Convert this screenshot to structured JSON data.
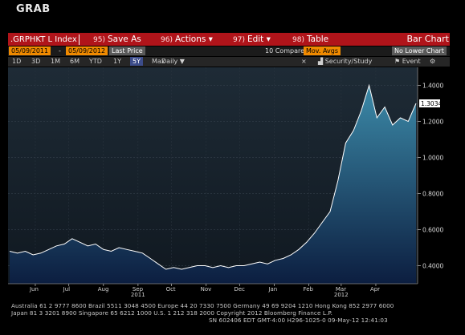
{
  "title": "GRAB",
  "toolbar": {
    "ticker": ".GRPHKT L Index",
    "save_as": "Save As",
    "save_as_num": "95)",
    "actions": "Actions",
    "actions_num": "96)",
    "edit": "Edit",
    "edit_num": "97)",
    "table": "Table",
    "table_num": "98)",
    "bar_chart": "Bar Chart"
  },
  "options": {
    "start_date": "05/09/2011",
    "end_date": "05/09/2012",
    "price_field": "Last Price",
    "compare": "10 Compare",
    "mov_avgs": "Mov. Avgs",
    "lower_chart": "No Lower Chart"
  },
  "periods": [
    "1D",
    "3D",
    "1M",
    "6M",
    "YTD",
    "1Y",
    "5Y",
    "Max"
  ],
  "selected_period": "5Y",
  "frequency": "Daily",
  "tools": {
    "security_study": "Security/Study",
    "event": "Event"
  },
  "chart_data": {
    "type": "area",
    "x": [
      "2011-05-09",
      "2011-05-16",
      "2011-05-23",
      "2011-05-30",
      "2011-06-06",
      "2011-06-13",
      "2011-06-20",
      "2011-06-27",
      "2011-07-04",
      "2011-07-11",
      "2011-07-18",
      "2011-07-25",
      "2011-08-01",
      "2011-08-08",
      "2011-08-15",
      "2011-08-22",
      "2011-08-29",
      "2011-09-05",
      "2011-09-12",
      "2011-09-19",
      "2011-09-26",
      "2011-10-03",
      "2011-10-10",
      "2011-10-17",
      "2011-10-24",
      "2011-10-31",
      "2011-11-07",
      "2011-11-14",
      "2011-11-21",
      "2011-11-28",
      "2011-12-05",
      "2011-12-12",
      "2011-12-19",
      "2011-12-26",
      "2012-01-02",
      "2012-01-09",
      "2012-01-16",
      "2012-01-23",
      "2012-01-30",
      "2012-02-06",
      "2012-02-13",
      "2012-02-20",
      "2012-02-27",
      "2012-03-05",
      "2012-03-12",
      "2012-03-19",
      "2012-03-26",
      "2012-04-02",
      "2012-04-09",
      "2012-04-16",
      "2012-04-23",
      "2012-04-30",
      "2012-05-07"
    ],
    "values": [
      0.48,
      0.47,
      0.48,
      0.46,
      0.47,
      0.49,
      0.51,
      0.52,
      0.55,
      0.53,
      0.51,
      0.52,
      0.49,
      0.48,
      0.5,
      0.49,
      0.48,
      0.47,
      0.44,
      0.41,
      0.38,
      0.39,
      0.38,
      0.39,
      0.4,
      0.4,
      0.39,
      0.4,
      0.39,
      0.4,
      0.4,
      0.41,
      0.42,
      0.41,
      0.43,
      0.44,
      0.46,
      0.49,
      0.53,
      0.58,
      0.64,
      0.7,
      0.87,
      1.08,
      1.15,
      1.26,
      1.4,
      1.22,
      1.28,
      1.18,
      1.22,
      1.2,
      1.3
    ],
    "ylim": [
      0.3,
      1.5
    ],
    "y_ticks": [
      "1.4000",
      "1.2000",
      "1.0000",
      "0.8000",
      "0.6000",
      "0.4000"
    ],
    "y_tick_values": [
      1.4,
      1.2,
      1.0,
      0.8,
      0.6,
      0.4
    ],
    "last_value_label": "1.3034",
    "last_value": 1.3,
    "x_tick_labels": [
      "Jun",
      "Jul",
      "Aug",
      "Sep",
      "Oct",
      "Nov",
      "Dec",
      "Jan",
      "Feb",
      "Mar",
      "Apr"
    ],
    "x_tick_dates": [
      "2011-06-01",
      "2011-07-01",
      "2011-08-01",
      "2011-09-01",
      "2011-10-01",
      "2011-11-01",
      "2011-12-01",
      "2012-01-01",
      "2012-02-01",
      "2012-03-01",
      "2012-04-01"
    ],
    "year_labels": [
      "2011",
      "2012"
    ],
    "year_label_dates": [
      "2011-09-01",
      "2012-03-01"
    ],
    "fill_color": "#2a6a88",
    "line_color": "#ffffff",
    "grid": true
  },
  "footer": {
    "line1": "Australia 61 2 9777 8600 Brazil 5511 3048 4500 Europe 44 20 7330 7500 Germany 49 69 9204 1210 Hong Kong 852 2977 6000",
    "line2": "Japan 81 3 3201 8900        Singapore 65 6212 1000        U.S. 1 212 318 2000        Copyright 2012 Bloomberg Finance L.P.",
    "line3": "SN 602406  EDT  GMT-4:00 H296-1025-0 09-May-12 12:41:03"
  }
}
